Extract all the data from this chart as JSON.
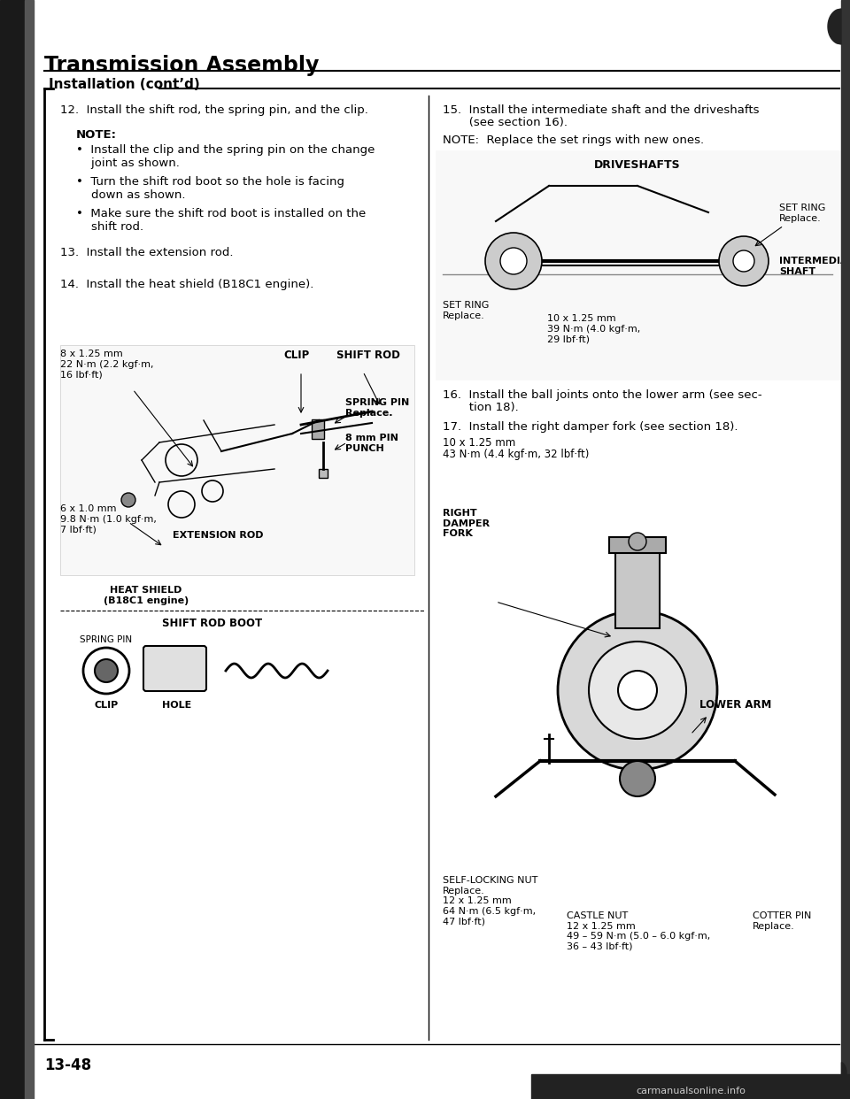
{
  "title": "Transmission Assembly",
  "subtitle": "Installation (cont’d)",
  "bg_color": "#ffffff",
  "page_number": "13-48",
  "watermark": "carmanualsonline.info",
  "left": {
    "item12": "12.  Install the shift rod, the spring pin, and the clip.",
    "note_hdr": "NOTE:",
    "bullets": [
      "Install the clip and the spring pin on the change\n    joint as shown.",
      "Turn the shift rod boot so the hole is facing\n    down as shown.",
      "Make sure the shift rod boot is installed on the\n    shift rod."
    ],
    "item13": "13.  Install the extension rod.",
    "item14": "14.  Install the heat shield (B18C1 engine).",
    "d1_bolt": "8 x 1.25 mm\n22 N·m (2.2 kgf·m,\n16 lbf·ft)",
    "d1_clip": "CLIP",
    "d1_shiftrod": "SHIFT ROD",
    "d1_springpin": "SPRING PIN\nReplace.",
    "d1_pinpunch": "8 mm PIN\nPUNCH",
    "d1_extrod": "EXTENSION ROD",
    "d1_lbolt": "6 x 1.0 mm\n9.8 N·m (1.0 kgf·m,\n7 lbf·ft)",
    "d1_heatshield": "HEAT SHIELD\n(B18C1 engine)",
    "d2_title": "SHIFT ROD BOOT",
    "d2_springpin": "SPRING PIN",
    "d2_clip": "CLIP",
    "d2_hole": "HOLE"
  },
  "right": {
    "item15a": "15.  Install the intermediate shaft and the driveshafts",
    "item15b": "       (see section 16).",
    "note15": "NOTE:  Replace the set rings with new ones.",
    "d3_driveshafts": "DRIVESHAFTS",
    "d3_setring_r": "SET RING\nReplace.",
    "d3_intshaft": "INTERMEDIATE\nSHAFT",
    "d3_setring_l": "SET RING\nReplace.",
    "d3_bolt": "10 x 1.25 mm\n39 N·m (4.0 kgf·m,\n29 lbf·ft)",
    "item16a": "16.  Install the ball joints onto the lower arm (see sec-",
    "item16b": "       tion 18).",
    "item17": "17.  Install the right damper fork (see section 18).",
    "d4_bolt": "10 x 1.25 mm\n43 N·m (4.4 kgf·m, 32 lbf·ft)",
    "d4_rfork": "RIGHT\nDAMPER\nFORK",
    "d4_lowerarm": "LOWER ARM",
    "d4_selflock": "SELF-LOCKING NUT\nReplace.\n12 x 1.25 mm\n64 N·m (6.5 kgf·m,\n47 lbf·ft)",
    "d4_castle": "CASTLE NUT\n12 x 1.25 mm\n49 – 59 N·m (5.0 – 6.0 kgf·m,\n36 – 43 lbf·ft)",
    "d4_cotter": "COTTER PIN\nReplace."
  }
}
